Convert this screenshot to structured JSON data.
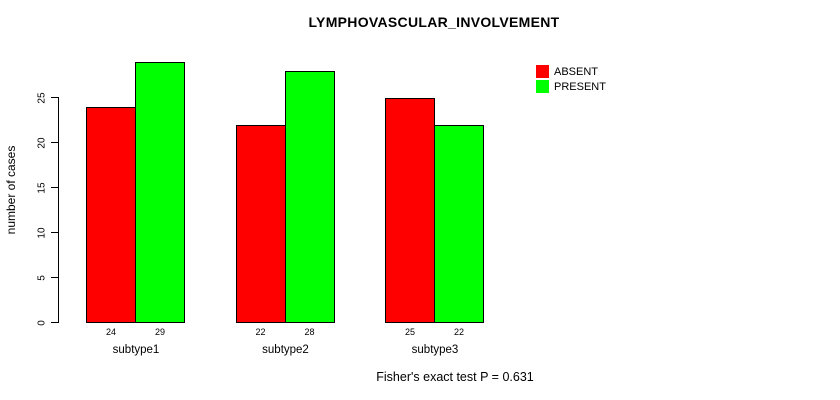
{
  "chart_data": {
    "type": "bar",
    "title": "LYMPHOVASCULAR_INVOLVEMENT",
    "ylabel": "number of cases",
    "xlabel": "",
    "categories": [
      "subtype1",
      "subtype2",
      "subtype3"
    ],
    "series": [
      {
        "name": "ABSENT",
        "color": "#ff0000",
        "values": [
          24,
          22,
          25
        ]
      },
      {
        "name": "PRESENT",
        "color": "#00ff00",
        "values": [
          29,
          28,
          22
        ]
      }
    ],
    "yticks": [
      0,
      5,
      10,
      15,
      20,
      25
    ],
    "ylim": [
      0,
      29
    ],
    "grid": false,
    "legend_position": "top-right-inside",
    "bar_value_labels_shown": true,
    "annotation": "Fisher's exact test P = 0.631"
  }
}
